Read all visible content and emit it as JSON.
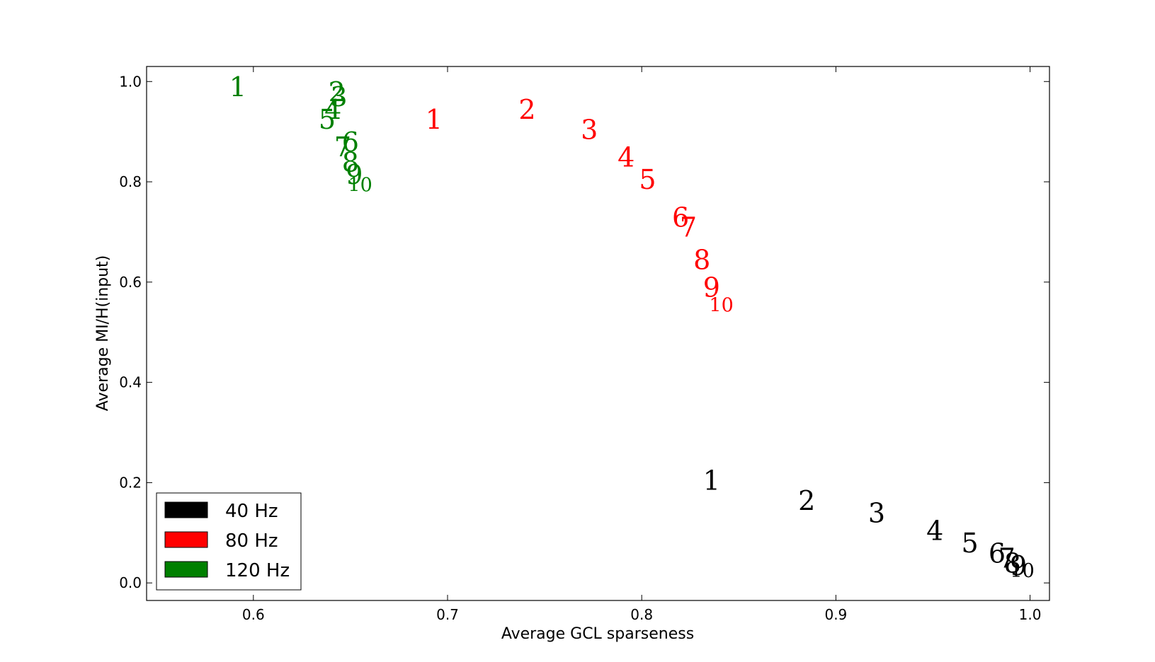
{
  "chart_data": {
    "type": "scatter",
    "xlabel": "Average GCL sparseness",
    "ylabel": "Average MI/H(input)",
    "xlim": [
      0.545,
      1.01
    ],
    "ylim": [
      -0.035,
      1.03
    ],
    "xticks": [
      "0.6",
      "0.7",
      "0.8",
      "0.9",
      "1.0"
    ],
    "yticks": [
      "0.0",
      "0.2",
      "0.4",
      "0.6",
      "0.8",
      "1.0"
    ],
    "grid": false,
    "legend_position": "bottom-left",
    "marker": "text labels 1-10",
    "series": [
      {
        "name": "40 Hz",
        "color": "#000000",
        "labels": [
          "1",
          "2",
          "3",
          "4",
          "5",
          "6",
          "7",
          "8",
          "9",
          "10"
        ],
        "x": [
          0.836,
          0.885,
          0.921,
          0.951,
          0.969,
          0.983,
          0.988,
          0.991,
          0.994,
          0.996
        ],
        "y": [
          0.205,
          0.165,
          0.14,
          0.105,
          0.08,
          0.06,
          0.05,
          0.04,
          0.035,
          0.025
        ]
      },
      {
        "name": "80 Hz",
        "color": "#ff0000",
        "labels": [
          "1",
          "2",
          "3",
          "4",
          "5",
          "6",
          "7",
          "8",
          "9",
          "10"
        ],
        "x": [
          0.693,
          0.741,
          0.773,
          0.792,
          0.803,
          0.82,
          0.824,
          0.831,
          0.836,
          0.841
        ],
        "y": [
          0.925,
          0.945,
          0.905,
          0.85,
          0.805,
          0.73,
          0.71,
          0.645,
          0.59,
          0.555
        ]
      },
      {
        "name": "120 Hz",
        "color": "#008000",
        "labels": [
          "1",
          "2",
          "3",
          "4",
          "5",
          "6",
          "7",
          "8",
          "9",
          "10"
        ],
        "x": [
          0.592,
          0.643,
          0.644,
          0.641,
          0.638,
          0.65,
          0.646,
          0.65,
          0.652,
          0.655
        ],
        "y": [
          0.99,
          0.98,
          0.97,
          0.945,
          0.925,
          0.88,
          0.87,
          0.84,
          0.815,
          0.795
        ]
      }
    ]
  }
}
